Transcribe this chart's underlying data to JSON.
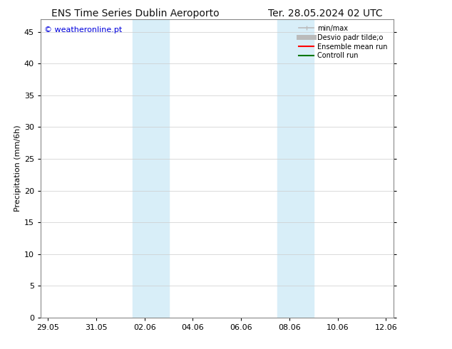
{
  "title_left": "ENS Time Series Dublin Aeroporto",
  "title_right": "Ter. 28.05.2024 02 UTC",
  "ylabel": "Precipitation (mm/6h)",
  "watermark": "© weatheronline.pt",
  "watermark_color": "#0000dd",
  "yticks": [
    0,
    5,
    10,
    15,
    20,
    25,
    30,
    35,
    40,
    45
  ],
  "ylim": [
    0,
    47
  ],
  "xlim": [
    -0.3,
    14.3
  ],
  "xtick_positions": [
    0,
    2,
    4,
    6,
    8,
    10,
    12,
    14
  ],
  "xtick_labels": [
    "29.05",
    "31.05",
    "02.06",
    "04.06",
    "06.06",
    "08.06",
    "10.06",
    "12.06"
  ],
  "shade_bands": [
    {
      "xstart": 3.5,
      "xend": 5.0
    },
    {
      "xstart": 9.5,
      "xend": 11.0
    }
  ],
  "shade_color": "#d8eef8",
  "background_color": "#ffffff",
  "legend_entries": [
    {
      "label": "min/max",
      "color": "#bbbbbb",
      "lw": 1.2,
      "style": "-"
    },
    {
      "label": "Desvio padr tilde;o",
      "color": "#bbbbbb",
      "lw": 5,
      "style": "-"
    },
    {
      "label": "Ensemble mean run",
      "color": "#ff0000",
      "lw": 1.5,
      "style": "-"
    },
    {
      "label": "Controll run",
      "color": "#007700",
      "lw": 1.5,
      "style": "-"
    }
  ],
  "title_fontsize": 10,
  "ylabel_fontsize": 8,
  "tick_fontsize": 8,
  "legend_fontsize": 7,
  "watermark_fontsize": 8
}
